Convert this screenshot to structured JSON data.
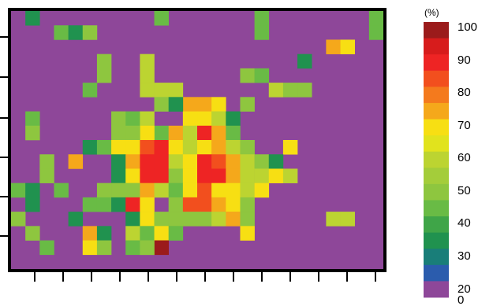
{
  "chart_data": {
    "type": "heatmap",
    "title": "",
    "xlabel": "",
    "ylabel": "",
    "value_range": [
      0,
      100
    ],
    "colorbar": {
      "unit_label": "(%)",
      "tick_labels": [
        "100",
        "90",
        "80",
        "70",
        "60",
        "50",
        "40",
        "30",
        "20",
        "0"
      ],
      "colors": [
        "#9b1b1b",
        "#d71c1c",
        "#ee2424",
        "#f24f1e",
        "#f47a1d",
        "#f5a81b",
        "#f7df13",
        "#e1e31d",
        "#bcd431",
        "#a4cd3a",
        "#8ec63f",
        "#69bb45",
        "#3fa548",
        "#20924f",
        "#197e79",
        "#2b5cad",
        "#8e4799"
      ]
    },
    "background_color": "#8e4799",
    "grid_cols": 26,
    "grid_rows": 18,
    "cells": [
      [
        1,
        0,
        20
      ],
      [
        17,
        0,
        30
      ],
      [
        25,
        0,
        30
      ],
      [
        3,
        1,
        30
      ],
      [
        4,
        1,
        20
      ],
      [
        5,
        1,
        40
      ],
      [
        10,
        0,
        30
      ],
      [
        17,
        1,
        30
      ],
      [
        25,
        1,
        30
      ],
      [
        22,
        2,
        70
      ],
      [
        23,
        2,
        60
      ],
      [
        20,
        3,
        20
      ],
      [
        6,
        3,
        40
      ],
      [
        9,
        3,
        50
      ],
      [
        6,
        4,
        40
      ],
      [
        9,
        4,
        50
      ],
      [
        16,
        4,
        40
      ],
      [
        17,
        4,
        30
      ],
      [
        5,
        5,
        30
      ],
      [
        10,
        5,
        50
      ],
      [
        11,
        5,
        50
      ],
      [
        18,
        5,
        50
      ],
      [
        19,
        5,
        40
      ],
      [
        20,
        5,
        40
      ],
      [
        9,
        5,
        50
      ],
      [
        10,
        6,
        40
      ],
      [
        12,
        6,
        70
      ],
      [
        13,
        6,
        70
      ],
      [
        14,
        6,
        60
      ],
      [
        11,
        6,
        20
      ],
      [
        13,
        7,
        60
      ],
      [
        12,
        7,
        60
      ],
      [
        14,
        7,
        50
      ],
      [
        15,
        7,
        20
      ],
      [
        7,
        7,
        40
      ],
      [
        8,
        7,
        30
      ],
      [
        9,
        7,
        50
      ],
      [
        1,
        7,
        30
      ],
      [
        16,
        6,
        40
      ],
      [
        10,
        8,
        30
      ],
      [
        11,
        8,
        70
      ],
      [
        12,
        8,
        50
      ],
      [
        13,
        8,
        90
      ],
      [
        14,
        8,
        70
      ],
      [
        15,
        8,
        30
      ],
      [
        9,
        8,
        60
      ],
      [
        8,
        8,
        40
      ],
      [
        1,
        8,
        40
      ],
      [
        7,
        8,
        40
      ],
      [
        5,
        9,
        20
      ],
      [
        6,
        9,
        30
      ],
      [
        7,
        9,
        60
      ],
      [
        8,
        9,
        60
      ],
      [
        9,
        9,
        80
      ],
      [
        10,
        9,
        90
      ],
      [
        11,
        9,
        60
      ],
      [
        12,
        9,
        50
      ],
      [
        13,
        9,
        60
      ],
      [
        14,
        9,
        70
      ],
      [
        15,
        9,
        50
      ],
      [
        16,
        9,
        40
      ],
      [
        19,
        9,
        60
      ],
      [
        2,
        10,
        40
      ],
      [
        4,
        10,
        70
      ],
      [
        7,
        10,
        20
      ],
      [
        8,
        10,
        70
      ],
      [
        9,
        10,
        90
      ],
      [
        10,
        10,
        90
      ],
      [
        11,
        10,
        50
      ],
      [
        12,
        10,
        60
      ],
      [
        13,
        10,
        90
      ],
      [
        14,
        10,
        80
      ],
      [
        15,
        10,
        70
      ],
      [
        16,
        10,
        50
      ],
      [
        17,
        10,
        40
      ],
      [
        18,
        10,
        20
      ],
      [
        2,
        11,
        40
      ],
      [
        7,
        11,
        20
      ],
      [
        8,
        11,
        60
      ],
      [
        9,
        11,
        90
      ],
      [
        10,
        11,
        90
      ],
      [
        11,
        11,
        40
      ],
      [
        12,
        11,
        60
      ],
      [
        13,
        11,
        90
      ],
      [
        14,
        11,
        90
      ],
      [
        15,
        11,
        70
      ],
      [
        16,
        11,
        50
      ],
      [
        17,
        11,
        50
      ],
      [
        18,
        11,
        60
      ],
      [
        19,
        11,
        50
      ],
      [
        0,
        12,
        30
      ],
      [
        1,
        12,
        20
      ],
      [
        3,
        12,
        30
      ],
      [
        6,
        12,
        40
      ],
      [
        7,
        12,
        40
      ],
      [
        8,
        12,
        40
      ],
      [
        9,
        12,
        70
      ],
      [
        10,
        12,
        50
      ],
      [
        11,
        12,
        30
      ],
      [
        12,
        12,
        60
      ],
      [
        13,
        12,
        80
      ],
      [
        14,
        12,
        60
      ],
      [
        15,
        12,
        60
      ],
      [
        16,
        12,
        50
      ],
      [
        17,
        12,
        60
      ],
      [
        1,
        13,
        20
      ],
      [
        5,
        13,
        30
      ],
      [
        6,
        13,
        30
      ],
      [
        7,
        13,
        20
      ],
      [
        8,
        13,
        90
      ],
      [
        9,
        13,
        60
      ],
      [
        11,
        13,
        40
      ],
      [
        12,
        13,
        80
      ],
      [
        13,
        13,
        80
      ],
      [
        14,
        13,
        70
      ],
      [
        15,
        13,
        60
      ],
      [
        16,
        13,
        40
      ],
      [
        0,
        14,
        40
      ],
      [
        4,
        14,
        20
      ],
      [
        8,
        14,
        20
      ],
      [
        9,
        14,
        60
      ],
      [
        10,
        14,
        40
      ],
      [
        11,
        14,
        40
      ],
      [
        12,
        14,
        40
      ],
      [
        13,
        14,
        40
      ],
      [
        14,
        14,
        50
      ],
      [
        15,
        14,
        70
      ],
      [
        16,
        14,
        40
      ],
      [
        22,
        14,
        50
      ],
      [
        23,
        14,
        50
      ],
      [
        1,
        15,
        40
      ],
      [
        5,
        15,
        70
      ],
      [
        6,
        15,
        20
      ],
      [
        8,
        15,
        50
      ],
      [
        9,
        15,
        30
      ],
      [
        10,
        15,
        60
      ],
      [
        11,
        15,
        30
      ],
      [
        16,
        15,
        60
      ],
      [
        2,
        16,
        30
      ],
      [
        9,
        16,
        40
      ],
      [
        10,
        16,
        100
      ],
      [
        5,
        16,
        60
      ],
      [
        6,
        16,
        40
      ],
      [
        8,
        16,
        30
      ],
      [
        9,
        16,
        40
      ]
    ]
  }
}
